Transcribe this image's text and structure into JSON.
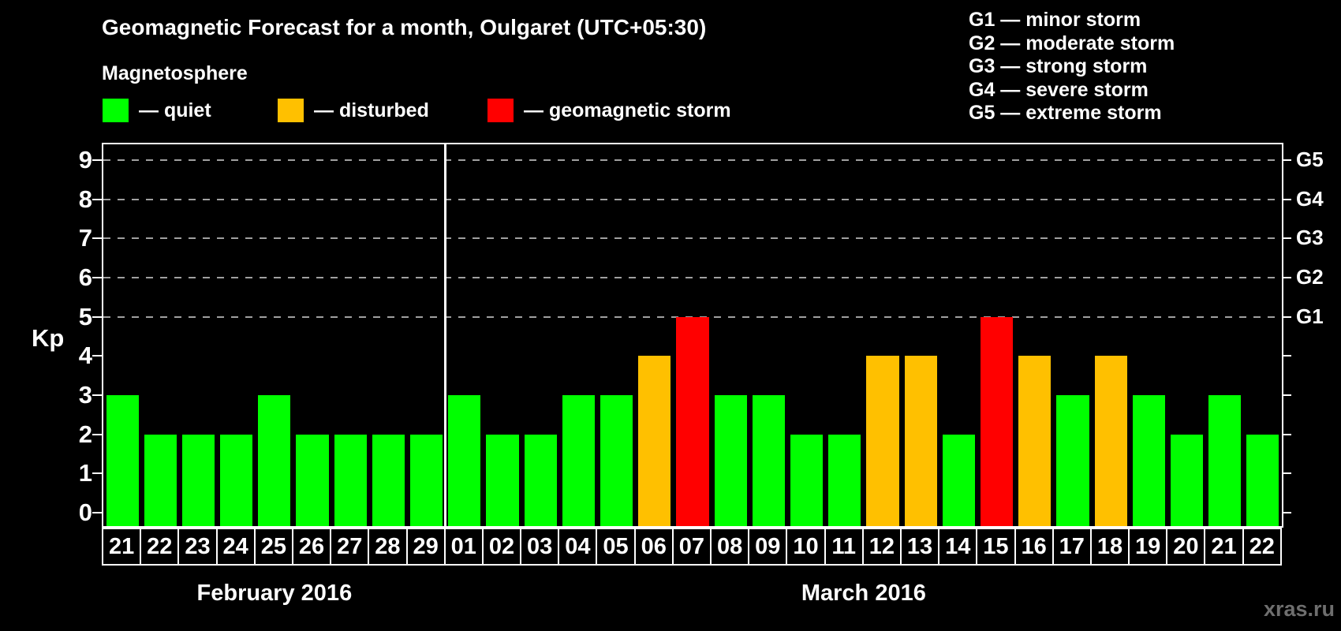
{
  "header": {
    "title": "Geomagnetic Forecast for a month, Oulgaret (UTC+05:30)",
    "subtitle": "Magnetosphere"
  },
  "legend": {
    "items": [
      {
        "key": "quiet",
        "label": "— quiet",
        "color": "#00ff00"
      },
      {
        "key": "disturbed",
        "label": "— disturbed",
        "color": "#ffc000"
      },
      {
        "key": "storm",
        "label": "— geomagnetic storm",
        "color": "#ff0000"
      }
    ]
  },
  "g_scale_legend": {
    "lines": [
      "G1 — minor storm",
      "G2 — moderate storm",
      "G3 — strong storm",
      "G4 — severe storm",
      "G5 — extreme storm"
    ]
  },
  "watermark": "xras.ru",
  "chart_data": {
    "type": "bar",
    "ylabel": "Kp",
    "ylim": [
      0,
      9
    ],
    "y_ticks": [
      0,
      1,
      2,
      3,
      4,
      5,
      6,
      7,
      8,
      9
    ],
    "gridlines_at_kp": [
      5,
      6,
      7,
      8,
      9
    ],
    "right_axis_ticks": [
      {
        "kp": 5,
        "label": "G1"
      },
      {
        "kp": 6,
        "label": "G2"
      },
      {
        "kp": 7,
        "label": "G3"
      },
      {
        "kp": 8,
        "label": "G4"
      },
      {
        "kp": 9,
        "label": "G5"
      }
    ],
    "legend_color_map": {
      "quiet": "#00ff00",
      "disturbed": "#ffc000",
      "storm": "#ff0000"
    },
    "months": [
      {
        "label": "February 2016",
        "start_index": 0,
        "count": 9
      },
      {
        "label": "March 2016",
        "start_index": 9,
        "count": 22
      }
    ],
    "bars": [
      {
        "day": "21",
        "month": "February 2016",
        "kp": 3,
        "status": "quiet"
      },
      {
        "day": "22",
        "month": "February 2016",
        "kp": 2,
        "status": "quiet"
      },
      {
        "day": "23",
        "month": "February 2016",
        "kp": 2,
        "status": "quiet"
      },
      {
        "day": "24",
        "month": "February 2016",
        "kp": 2,
        "status": "quiet"
      },
      {
        "day": "25",
        "month": "February 2016",
        "kp": 3,
        "status": "quiet"
      },
      {
        "day": "26",
        "month": "February 2016",
        "kp": 2,
        "status": "quiet"
      },
      {
        "day": "27",
        "month": "February 2016",
        "kp": 2,
        "status": "quiet"
      },
      {
        "day": "28",
        "month": "February 2016",
        "kp": 2,
        "status": "quiet"
      },
      {
        "day": "29",
        "month": "February 2016",
        "kp": 2,
        "status": "quiet"
      },
      {
        "day": "01",
        "month": "March 2016",
        "kp": 3,
        "status": "quiet"
      },
      {
        "day": "02",
        "month": "March 2016",
        "kp": 2,
        "status": "quiet"
      },
      {
        "day": "03",
        "month": "March 2016",
        "kp": 2,
        "status": "quiet"
      },
      {
        "day": "04",
        "month": "March 2016",
        "kp": 3,
        "status": "quiet"
      },
      {
        "day": "05",
        "month": "March 2016",
        "kp": 3,
        "status": "quiet"
      },
      {
        "day": "06",
        "month": "March 2016",
        "kp": 4,
        "status": "disturbed"
      },
      {
        "day": "07",
        "month": "March 2016",
        "kp": 5,
        "status": "storm"
      },
      {
        "day": "08",
        "month": "March 2016",
        "kp": 3,
        "status": "quiet"
      },
      {
        "day": "09",
        "month": "March 2016",
        "kp": 3,
        "status": "quiet"
      },
      {
        "day": "10",
        "month": "March 2016",
        "kp": 2,
        "status": "quiet"
      },
      {
        "day": "11",
        "month": "March 2016",
        "kp": 2,
        "status": "quiet"
      },
      {
        "day": "12",
        "month": "March 2016",
        "kp": 4,
        "status": "disturbed"
      },
      {
        "day": "13",
        "month": "March 2016",
        "kp": 4,
        "status": "disturbed"
      },
      {
        "day": "14",
        "month": "March 2016",
        "kp": 2,
        "status": "quiet"
      },
      {
        "day": "15",
        "month": "March 2016",
        "kp": 5,
        "status": "storm"
      },
      {
        "day": "16",
        "month": "March 2016",
        "kp": 4,
        "status": "disturbed"
      },
      {
        "day": "17",
        "month": "March 2016",
        "kp": 3,
        "status": "quiet"
      },
      {
        "day": "18",
        "month": "March 2016",
        "kp": 4,
        "status": "disturbed"
      },
      {
        "day": "19",
        "month": "March 2016",
        "kp": 3,
        "status": "quiet"
      },
      {
        "day": "20",
        "month": "March 2016",
        "kp": 2,
        "status": "quiet"
      },
      {
        "day": "21",
        "month": "March 2016",
        "kp": 3,
        "status": "quiet"
      },
      {
        "day": "22",
        "month": "March 2016",
        "kp": 2,
        "status": "quiet"
      }
    ]
  }
}
